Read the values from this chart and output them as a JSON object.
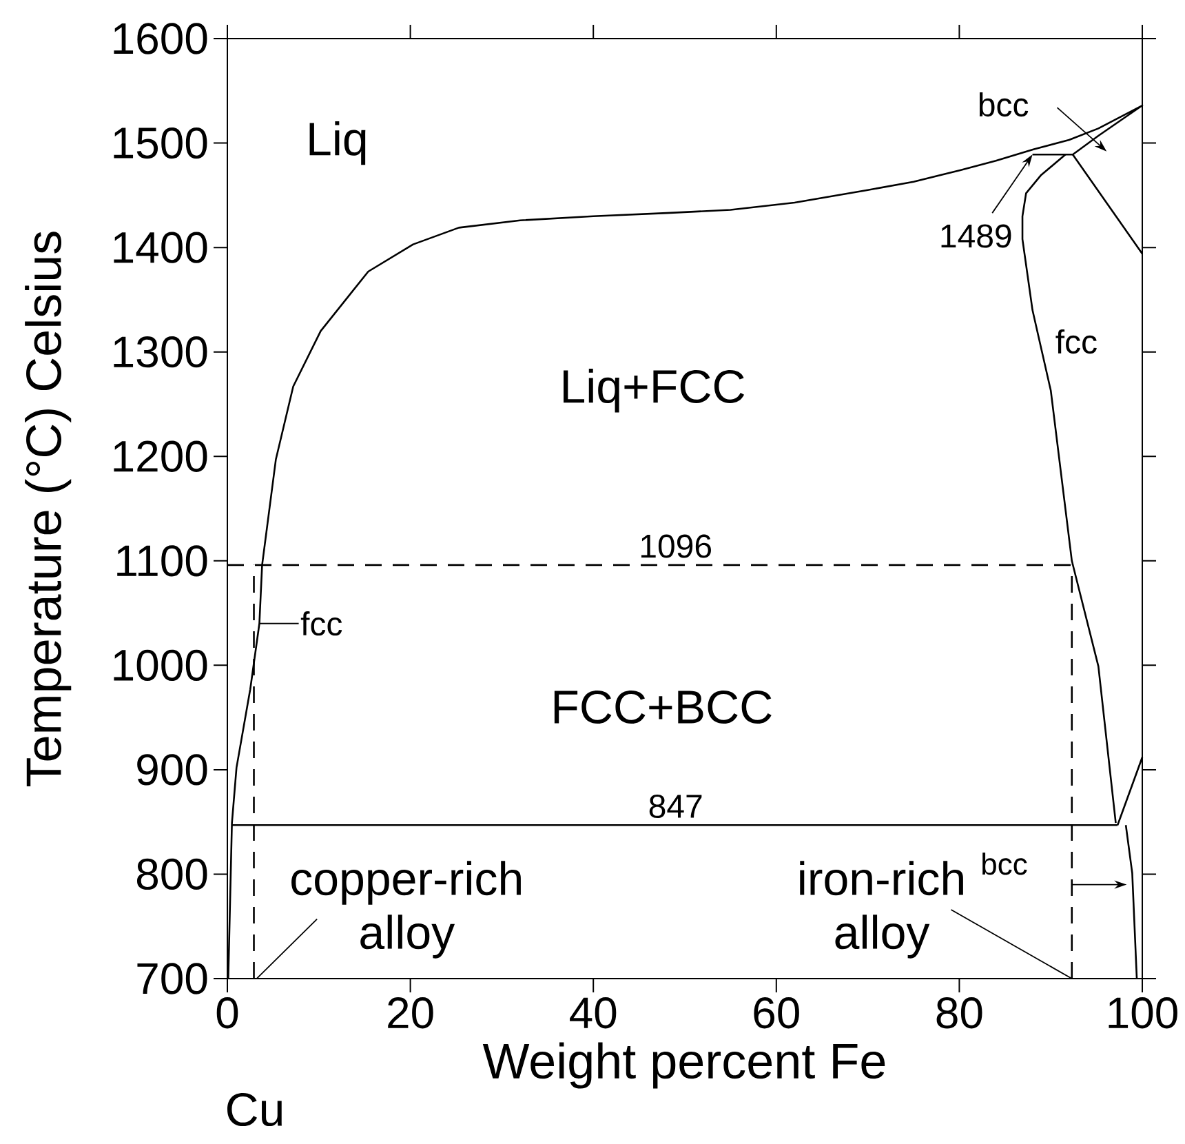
{
  "chart_data": {
    "type": "line",
    "xlabel": "Weight percent Fe",
    "ylabel": "Temperature (°C) Celsius",
    "xlim": [
      0,
      100
    ],
    "ylim": [
      700,
      1600
    ],
    "xticks": [
      0,
      20,
      40,
      60,
      80,
      100
    ],
    "yticks": [
      700,
      800,
      900,
      1000,
      1100,
      1200,
      1300,
      1400,
      1500,
      1600
    ],
    "marker": "none",
    "series": [
      {
        "color": "#000000",
        "line_style": "solid",
        "x": [
          0.1,
          0.5,
          1.0,
          2.5,
          3.5,
          3.8,
          5.3,
          7.2,
          10.2,
          15.4,
          20.3,
          25.3,
          32,
          40,
          48,
          55,
          62,
          70,
          75,
          80.1,
          84,
          88.1,
          92,
          95.2,
          100,
          95.2,
          92.4,
          100
        ],
        "values": [
          700,
          849,
          902,
          977,
          1040,
          1096,
          1197,
          1267,
          1320,
          1377,
          1403,
          1419,
          1426,
          1430,
          1433,
          1436,
          1443,
          1455,
          1463,
          1474,
          1483,
          1494,
          1503,
          1514,
          1536,
          1507,
          1489,
          1394
        ]
      },
      {
        "color": "#000000",
        "line_style": "solid",
        "x": [
          88,
          92.4
        ],
        "values": [
          1489,
          1489
        ]
      },
      {
        "color": "#000000",
        "line_style": "solid",
        "x": [
          91.6,
          88.9,
          87.3,
          86.9,
          86.9,
          88,
          90,
          92.3,
          95.2,
          97.1
        ],
        "values": [
          1489,
          1469,
          1452,
          1430,
          1408,
          1340,
          1263,
          1100,
          999,
          849
        ]
      },
      {
        "color": "#000000",
        "line_style": "solid",
        "x": [
          97.3,
          100
        ],
        "values": [
          847,
          912
        ]
      },
      {
        "color": "#000000",
        "line_style": "solid",
        "x": [
          98.2,
          98.9,
          99.4
        ],
        "values": [
          847,
          801,
          700
        ]
      },
      {
        "color": "#000000",
        "line_style": "solid",
        "x": [
          0.5,
          97.3
        ],
        "values": [
          847,
          847
        ]
      },
      {
        "color": "#000000",
        "line_style": "dashed",
        "x": [
          0,
          92.3
        ],
        "values": [
          1096,
          1096
        ]
      },
      {
        "color": "#000000",
        "line_style": "dashed",
        "x": [
          2.9,
          2.9
        ],
        "values": [
          700,
          1096
        ]
      },
      {
        "color": "#000000",
        "line_style": "dashed",
        "x": [
          92.3,
          92.3
        ],
        "values": [
          700,
          1096
        ]
      }
    ],
    "annotations": [
      "Liq",
      "Liq+FCC",
      "FCC+BCC",
      {
        "text": "1096",
        "x": 49,
        "y": 1096
      },
      {
        "text": "847",
        "x": 49,
        "y": 847
      },
      {
        "text": "1489",
        "x": 88,
        "y": 1489
      },
      "bcc",
      {
        "text": "fcc",
        "x": 89.5,
        "y": 1300
      },
      {
        "text": "fcc",
        "x": 3.5,
        "y": 1040
      },
      "bcc",
      {
        "text": "copper-rich alloy",
        "x": 3.2,
        "y": 700
      },
      {
        "text": "iron-rich alloy",
        "x": 92.3,
        "y": 700
      },
      "Cu"
    ]
  }
}
